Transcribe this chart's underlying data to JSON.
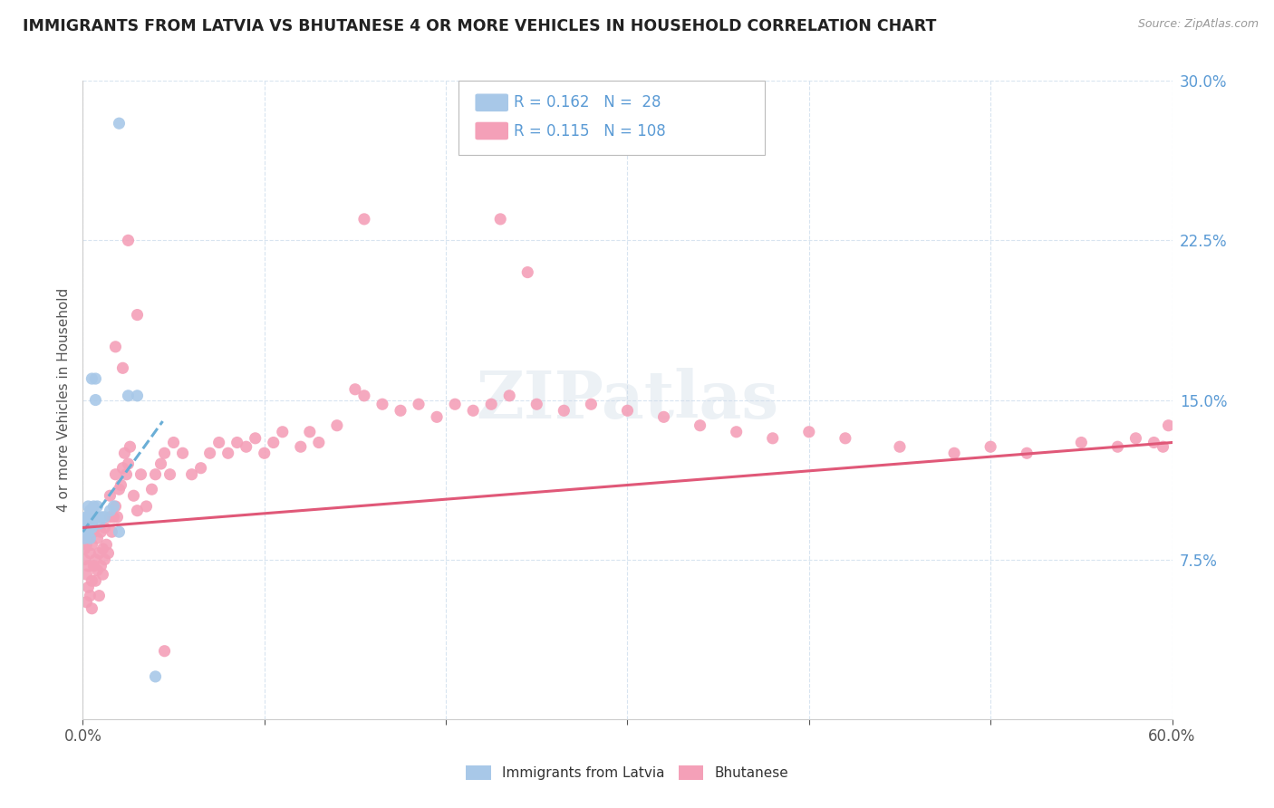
{
  "title": "IMMIGRANTS FROM LATVIA VS BHUTANESE 4 OR MORE VEHICLES IN HOUSEHOLD CORRELATION CHART",
  "source": "Source: ZipAtlas.com",
  "ylabel": "4 or more Vehicles in Household",
  "xlim": [
    0.0,
    0.6
  ],
  "ylim": [
    0.0,
    0.3
  ],
  "color_latvia": "#a8c8e8",
  "color_bhutanese": "#f4a0b8",
  "color_trendline_latvia": "#6aaed6",
  "color_trendline_bhutanese": "#e05878",
  "color_axis_right": "#5b9bd5",
  "color_grid": "#d8e4f0",
  "watermark_color": "#d0dce8",
  "latvia_x": [
    0.001,
    0.002,
    0.002,
    0.002,
    0.003,
    0.003,
    0.003,
    0.004,
    0.004,
    0.005,
    0.005,
    0.005,
    0.006,
    0.006,
    0.007,
    0.007,
    0.008,
    0.008,
    0.009,
    0.01,
    0.012,
    0.015,
    0.017,
    0.02,
    0.025,
    0.03,
    0.04,
    0.02
  ],
  "latvia_y": [
    0.085,
    0.09,
    0.092,
    0.095,
    0.088,
    0.095,
    0.1,
    0.085,
    0.098,
    0.09,
    0.092,
    0.16,
    0.095,
    0.1,
    0.15,
    0.16,
    0.095,
    0.1,
    0.092,
    0.095,
    0.095,
    0.098,
    0.1,
    0.28,
    0.152,
    0.152,
    0.02,
    0.088
  ],
  "bhutanese_x": [
    0.001,
    0.001,
    0.002,
    0.002,
    0.002,
    0.003,
    0.003,
    0.003,
    0.004,
    0.004,
    0.004,
    0.005,
    0.005,
    0.005,
    0.006,
    0.006,
    0.007,
    0.007,
    0.008,
    0.008,
    0.009,
    0.009,
    0.01,
    0.01,
    0.011,
    0.011,
    0.012,
    0.012,
    0.013,
    0.014,
    0.015,
    0.015,
    0.016,
    0.017,
    0.018,
    0.018,
    0.019,
    0.02,
    0.021,
    0.022,
    0.023,
    0.024,
    0.025,
    0.026,
    0.028,
    0.03,
    0.032,
    0.035,
    0.038,
    0.04,
    0.043,
    0.045,
    0.048,
    0.05,
    0.055,
    0.06,
    0.065,
    0.07,
    0.075,
    0.08,
    0.085,
    0.09,
    0.095,
    0.1,
    0.105,
    0.11,
    0.12,
    0.125,
    0.13,
    0.14,
    0.15,
    0.155,
    0.165,
    0.175,
    0.185,
    0.195,
    0.205,
    0.215,
    0.225,
    0.235,
    0.25,
    0.265,
    0.28,
    0.3,
    0.32,
    0.34,
    0.36,
    0.38,
    0.4,
    0.42,
    0.45,
    0.48,
    0.5,
    0.52,
    0.55,
    0.57,
    0.58,
    0.59,
    0.595,
    0.598,
    0.23,
    0.245,
    0.155,
    0.045,
    0.025,
    0.03,
    0.018,
    0.022
  ],
  "bhutanese_y": [
    0.08,
    0.075,
    0.068,
    0.082,
    0.055,
    0.072,
    0.085,
    0.062,
    0.078,
    0.058,
    0.09,
    0.082,
    0.065,
    0.052,
    0.072,
    0.088,
    0.065,
    0.075,
    0.07,
    0.085,
    0.058,
    0.078,
    0.072,
    0.088,
    0.068,
    0.08,
    0.075,
    0.09,
    0.082,
    0.078,
    0.095,
    0.105,
    0.088,
    0.095,
    0.1,
    0.115,
    0.095,
    0.108,
    0.11,
    0.118,
    0.125,
    0.115,
    0.12,
    0.128,
    0.105,
    0.098,
    0.115,
    0.1,
    0.108,
    0.115,
    0.12,
    0.125,
    0.115,
    0.13,
    0.125,
    0.115,
    0.118,
    0.125,
    0.13,
    0.125,
    0.13,
    0.128,
    0.132,
    0.125,
    0.13,
    0.135,
    0.128,
    0.135,
    0.13,
    0.138,
    0.155,
    0.152,
    0.148,
    0.145,
    0.148,
    0.142,
    0.148,
    0.145,
    0.148,
    0.152,
    0.148,
    0.145,
    0.148,
    0.145,
    0.142,
    0.138,
    0.135,
    0.132,
    0.135,
    0.132,
    0.128,
    0.125,
    0.128,
    0.125,
    0.13,
    0.128,
    0.132,
    0.13,
    0.128,
    0.138,
    0.235,
    0.21,
    0.235,
    0.032,
    0.225,
    0.19,
    0.175,
    0.165
  ],
  "latvia_trend_x": [
    0.0,
    0.044
  ],
  "latvia_trend_y": [
    0.088,
    0.14
  ],
  "bhutanese_trend_x": [
    0.0,
    0.6
  ],
  "bhutanese_trend_y": [
    0.09,
    0.13
  ]
}
